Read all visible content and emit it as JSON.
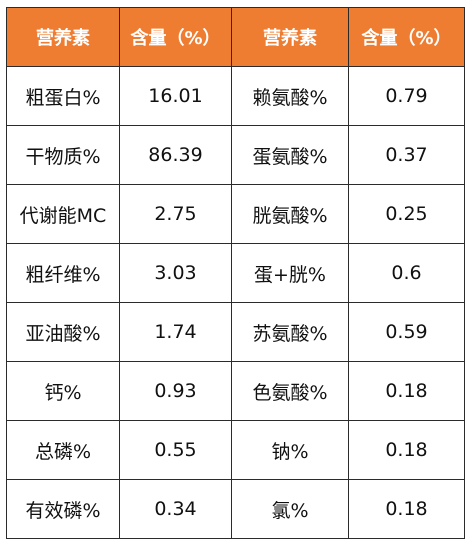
{
  "colors": {
    "header_bg": "#ee7d31",
    "header_text": "#ffffff",
    "border": "#2b2b2b",
    "cell_text": "#111111"
  },
  "table": {
    "headers": [
      "营养素",
      "含量（%）",
      "营养素",
      "含量（%）"
    ],
    "rows": [
      [
        "粗蛋白%",
        "16.01",
        "赖氨酸%",
        "0.79"
      ],
      [
        "干物质%",
        "86.39",
        "蛋氨酸%",
        "0.37"
      ],
      [
        "代谢能MC",
        "2.75",
        "胱氨酸%",
        "0.25"
      ],
      [
        "粗纤维%",
        "3.03",
        "蛋+胱%",
        "0.6"
      ],
      [
        "亚油酸%",
        "1.74",
        "苏氨酸%",
        "0.59"
      ],
      [
        "钙%",
        "0.93",
        "色氨酸%",
        "0.18"
      ],
      [
        "总磷%",
        "0.55",
        "钠%",
        "0.18"
      ],
      [
        "有效磷%",
        "0.34",
        "氯%",
        "0.18"
      ]
    ]
  }
}
